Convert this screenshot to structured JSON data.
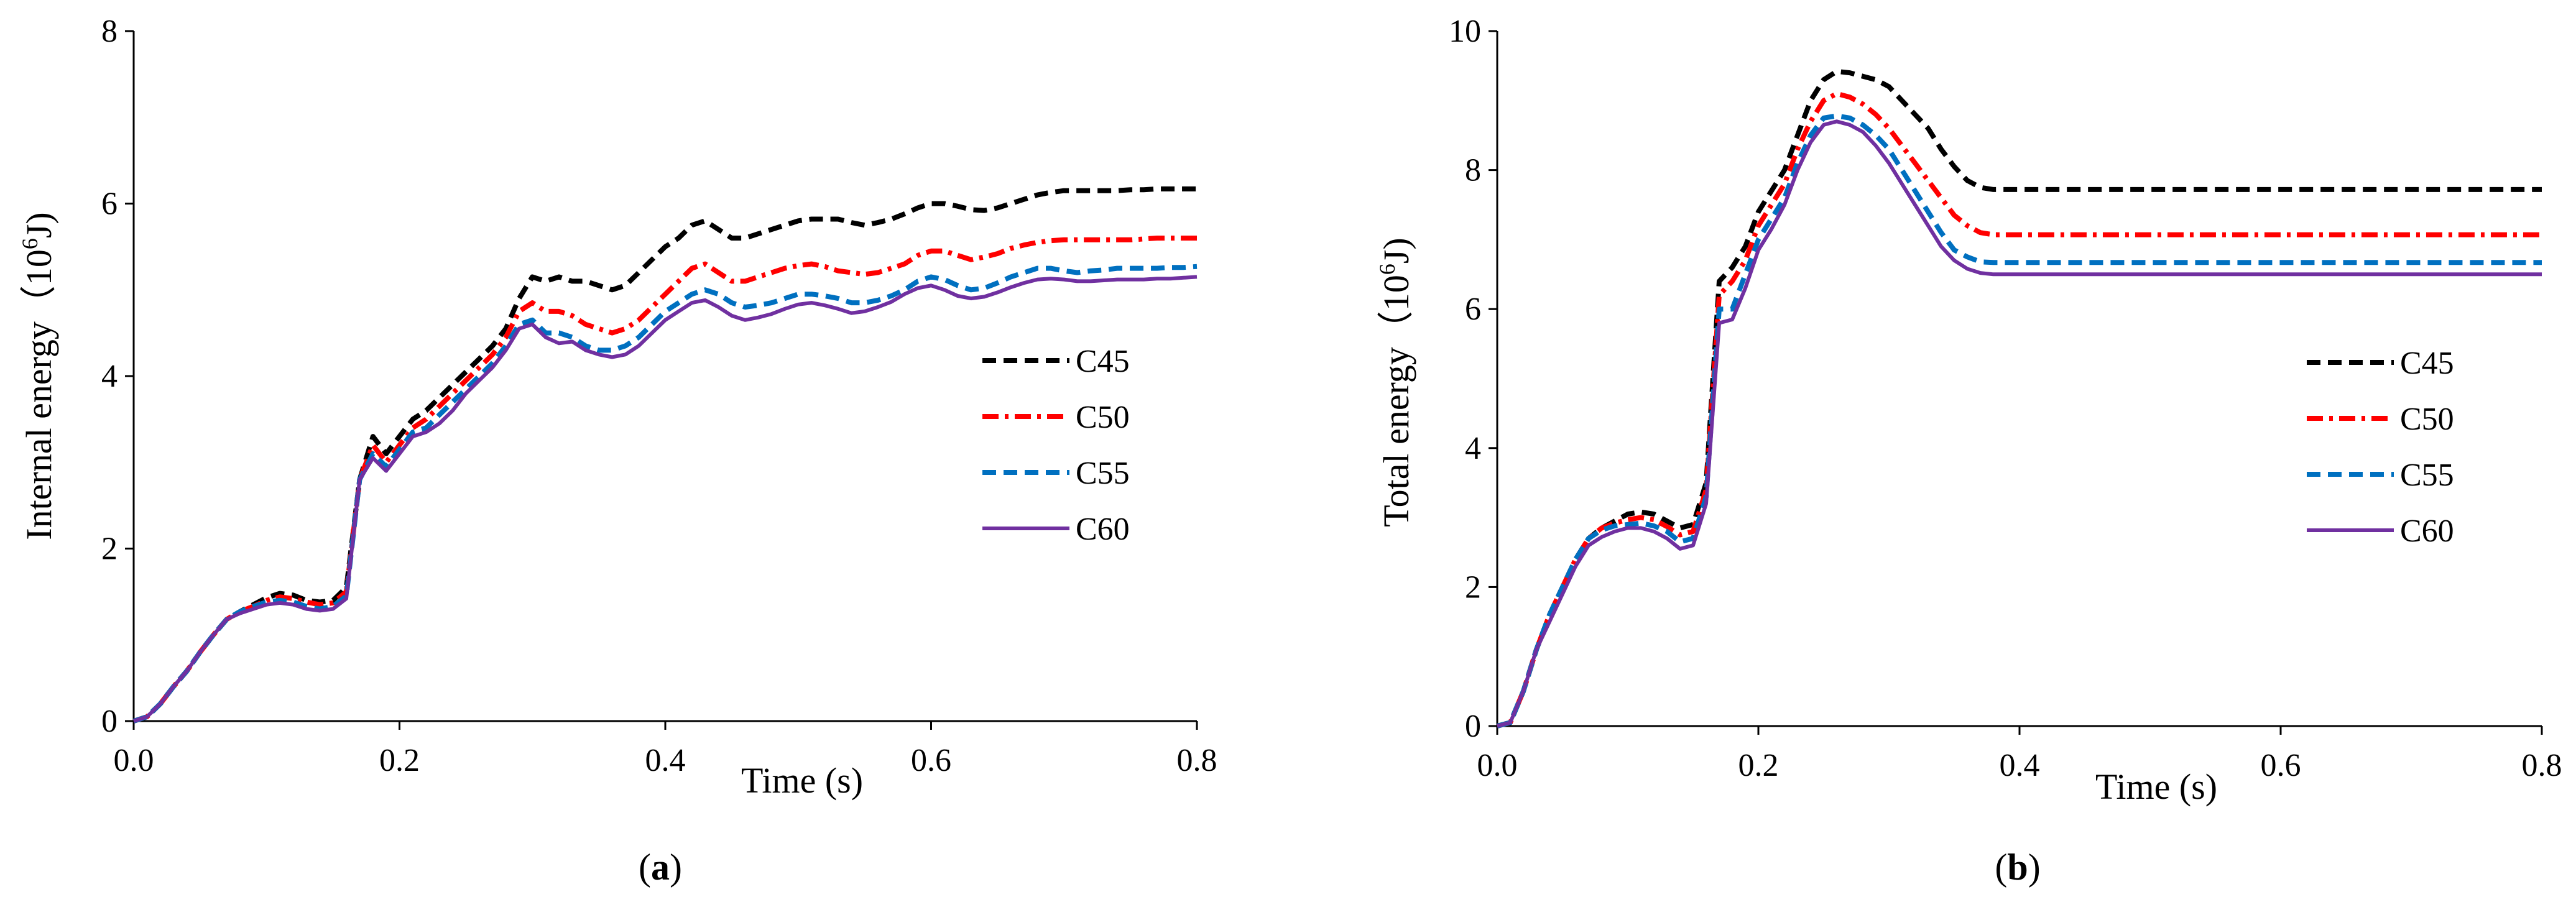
{
  "chart_data": [
    {
      "type": "line",
      "panel_label": {
        "open": "(",
        "letter": "a",
        "close": ")"
      },
      "xlabel": "Time (s)",
      "ylabel": {
        "main": "Internal energy（10",
        "sup": "6",
        "end": "J)"
      },
      "xlim": [
        0,
        0.8
      ],
      "ylim": [
        0,
        8
      ],
      "xticks": [
        "0.0",
        "0.2",
        "0.4",
        "0.6",
        "0.8"
      ],
      "yticks": [
        "0",
        "2",
        "4",
        "6",
        "8"
      ],
      "legend_position": "right",
      "x": [
        0,
        0.01,
        0.02,
        0.03,
        0.04,
        0.05,
        0.06,
        0.07,
        0.08,
        0.09,
        0.1,
        0.11,
        0.12,
        0.13,
        0.14,
        0.15,
        0.16,
        0.17,
        0.18,
        0.19,
        0.2,
        0.21,
        0.22,
        0.23,
        0.24,
        0.25,
        0.26,
        0.27,
        0.28,
        0.29,
        0.3,
        0.31,
        0.32,
        0.33,
        0.34,
        0.35,
        0.36,
        0.37,
        0.38,
        0.39,
        0.4,
        0.41,
        0.42,
        0.43,
        0.44,
        0.45,
        0.46,
        0.47,
        0.48,
        0.49,
        0.5,
        0.51,
        0.52,
        0.53,
        0.54,
        0.55,
        0.56,
        0.57,
        0.58,
        0.59,
        0.6,
        0.61,
        0.62,
        0.63,
        0.64,
        0.65,
        0.66,
        0.67,
        0.68,
        0.69,
        0.7,
        0.71,
        0.72,
        0.73,
        0.74,
        0.75,
        0.76,
        0.77,
        0.78,
        0.79,
        0.8
      ],
      "series": [
        {
          "name": "C45",
          "color": "#000000",
          "dash": "dash",
          "values": [
            0,
            0.05,
            0.2,
            0.4,
            0.58,
            0.8,
            1.0,
            1.18,
            1.27,
            1.35,
            1.43,
            1.48,
            1.46,
            1.4,
            1.38,
            1.4,
            1.55,
            2.8,
            3.3,
            3.1,
            3.3,
            3.5,
            3.6,
            3.75,
            3.9,
            4.05,
            4.2,
            4.35,
            4.55,
            4.9,
            5.15,
            5.1,
            5.15,
            5.1,
            5.1,
            5.05,
            5.0,
            5.05,
            5.2,
            5.35,
            5.5,
            5.6,
            5.75,
            5.8,
            5.7,
            5.6,
            5.6,
            5.65,
            5.7,
            5.75,
            5.8,
            5.82,
            5.82,
            5.82,
            5.78,
            5.75,
            5.78,
            5.82,
            5.88,
            5.95,
            6.0,
            6.0,
            5.97,
            5.93,
            5.92,
            5.95,
            6.0,
            6.05,
            6.1,
            6.13,
            6.15,
            6.15,
            6.15,
            6.15,
            6.15,
            6.16,
            6.16,
            6.17,
            6.17,
            6.17,
            6.17
          ]
        },
        {
          "name": "C50",
          "color": "#ff0000",
          "dash": "dashdot",
          "values": [
            0,
            0.05,
            0.2,
            0.4,
            0.58,
            0.8,
            1.0,
            1.18,
            1.27,
            1.33,
            1.4,
            1.44,
            1.42,
            1.38,
            1.35,
            1.37,
            1.5,
            2.8,
            3.2,
            3.0,
            3.2,
            3.4,
            3.5,
            3.65,
            3.8,
            3.95,
            4.1,
            4.25,
            4.45,
            4.75,
            4.85,
            4.75,
            4.75,
            4.7,
            4.6,
            4.55,
            4.5,
            4.55,
            4.65,
            4.8,
            4.95,
            5.1,
            5.25,
            5.3,
            5.2,
            5.1,
            5.1,
            5.15,
            5.2,
            5.25,
            5.28,
            5.3,
            5.27,
            5.22,
            5.2,
            5.18,
            5.2,
            5.25,
            5.3,
            5.4,
            5.45,
            5.45,
            5.4,
            5.35,
            5.38,
            5.42,
            5.48,
            5.52,
            5.55,
            5.57,
            5.58,
            5.58,
            5.58,
            5.58,
            5.58,
            5.58,
            5.59,
            5.6,
            5.6,
            5.6,
            5.6
          ]
        },
        {
          "name": "C55",
          "color": "#0070c0",
          "dash": "dash",
          "values": [
            0,
            0.05,
            0.2,
            0.4,
            0.58,
            0.8,
            1.0,
            1.18,
            1.27,
            1.33,
            1.38,
            1.4,
            1.38,
            1.33,
            1.3,
            1.33,
            1.45,
            2.8,
            3.1,
            2.95,
            3.15,
            3.35,
            3.4,
            3.55,
            3.7,
            3.85,
            4.0,
            4.15,
            4.35,
            4.6,
            4.65,
            4.5,
            4.5,
            4.45,
            4.35,
            4.3,
            4.3,
            4.35,
            4.45,
            4.6,
            4.75,
            4.85,
            4.95,
            5.0,
            4.95,
            4.85,
            4.8,
            4.82,
            4.85,
            4.9,
            4.95,
            4.95,
            4.93,
            4.9,
            4.85,
            4.85,
            4.88,
            4.93,
            5.0,
            5.1,
            5.15,
            5.12,
            5.05,
            5.0,
            5.02,
            5.08,
            5.15,
            5.2,
            5.25,
            5.25,
            5.22,
            5.2,
            5.22,
            5.23,
            5.25,
            5.25,
            5.25,
            5.25,
            5.26,
            5.26,
            5.27
          ]
        },
        {
          "name": "C60",
          "color": "#7030a0",
          "dash": "solid",
          "values": [
            0,
            0.05,
            0.2,
            0.4,
            0.58,
            0.8,
            1.0,
            1.18,
            1.25,
            1.3,
            1.35,
            1.37,
            1.35,
            1.3,
            1.28,
            1.3,
            1.42,
            2.8,
            3.05,
            2.9,
            3.1,
            3.3,
            3.35,
            3.45,
            3.6,
            3.8,
            3.95,
            4.1,
            4.3,
            4.55,
            4.6,
            4.45,
            4.38,
            4.4,
            4.3,
            4.25,
            4.22,
            4.25,
            4.35,
            4.5,
            4.65,
            4.75,
            4.85,
            4.88,
            4.8,
            4.7,
            4.65,
            4.68,
            4.72,
            4.78,
            4.83,
            4.85,
            4.82,
            4.78,
            4.73,
            4.75,
            4.8,
            4.86,
            4.95,
            5.02,
            5.05,
            5.0,
            4.93,
            4.9,
            4.92,
            4.97,
            5.03,
            5.08,
            5.12,
            5.13,
            5.12,
            5.1,
            5.1,
            5.11,
            5.12,
            5.12,
            5.12,
            5.13,
            5.13,
            5.14,
            5.15
          ]
        }
      ]
    },
    {
      "type": "line",
      "panel_label": {
        "open": "(",
        "letter": "b",
        "close": ")"
      },
      "xlabel": "Time (s)",
      "ylabel": {
        "main": "Total energy（10",
        "sup": "6",
        "end": "J)"
      },
      "xlim": [
        0,
        0.8
      ],
      "ylim": [
        0,
        10
      ],
      "xticks": [
        "0.0",
        "0.2",
        "0.4",
        "0.6",
        "0.8"
      ],
      "yticks": [
        "0",
        "2",
        "4",
        "6",
        "8",
        "10"
      ],
      "legend_position": "right",
      "x": [
        0,
        0.01,
        0.02,
        0.03,
        0.04,
        0.05,
        0.06,
        0.07,
        0.08,
        0.09,
        0.1,
        0.11,
        0.12,
        0.13,
        0.14,
        0.15,
        0.16,
        0.17,
        0.18,
        0.19,
        0.2,
        0.21,
        0.22,
        0.23,
        0.24,
        0.25,
        0.26,
        0.27,
        0.28,
        0.29,
        0.3,
        0.31,
        0.32,
        0.33,
        0.34,
        0.35,
        0.36,
        0.37,
        0.38,
        0.39,
        0.4,
        0.8
      ],
      "series": [
        {
          "name": "C45",
          "color": "#000000",
          "dash": "dash",
          "values": [
            0,
            0.05,
            0.5,
            1.1,
            1.6,
            2.0,
            2.4,
            2.7,
            2.85,
            2.95,
            3.05,
            3.08,
            3.05,
            2.95,
            2.85,
            2.9,
            3.5,
            6.4,
            6.6,
            6.9,
            7.4,
            7.7,
            8.0,
            8.5,
            9.0,
            9.3,
            9.42,
            9.4,
            9.35,
            9.3,
            9.2,
            9.0,
            8.8,
            8.6,
            8.3,
            8.05,
            7.85,
            7.75,
            7.72,
            7.72,
            7.72,
            7.72
          ]
        },
        {
          "name": "C50",
          "color": "#ff0000",
          "dash": "dashdot",
          "values": [
            0,
            0.05,
            0.5,
            1.1,
            1.6,
            2.0,
            2.4,
            2.7,
            2.85,
            2.92,
            2.97,
            3.0,
            2.97,
            2.87,
            2.75,
            2.8,
            3.4,
            6.2,
            6.4,
            6.7,
            7.2,
            7.5,
            7.8,
            8.3,
            8.7,
            9.0,
            9.1,
            9.05,
            8.95,
            8.8,
            8.6,
            8.35,
            8.1,
            7.85,
            7.6,
            7.35,
            7.2,
            7.1,
            7.07,
            7.07,
            7.07,
            7.07
          ]
        },
        {
          "name": "C55",
          "color": "#0070c0",
          "dash": "dash",
          "values": [
            0,
            0.05,
            0.5,
            1.1,
            1.6,
            2.0,
            2.4,
            2.7,
            2.82,
            2.88,
            2.9,
            2.92,
            2.88,
            2.8,
            2.65,
            2.7,
            3.3,
            6.0,
            6.0,
            6.5,
            7.0,
            7.3,
            7.6,
            8.1,
            8.5,
            8.75,
            8.78,
            8.75,
            8.65,
            8.5,
            8.3,
            8.0,
            7.7,
            7.4,
            7.1,
            6.85,
            6.75,
            6.68,
            6.67,
            6.67,
            6.67,
            6.67
          ]
        },
        {
          "name": "C60",
          "color": "#7030a0",
          "dash": "solid",
          "values": [
            0,
            0.05,
            0.5,
            1.1,
            1.5,
            1.9,
            2.3,
            2.6,
            2.72,
            2.8,
            2.85,
            2.85,
            2.8,
            2.7,
            2.55,
            2.6,
            3.2,
            5.8,
            5.85,
            6.3,
            6.85,
            7.15,
            7.5,
            8.0,
            8.4,
            8.65,
            8.7,
            8.65,
            8.55,
            8.35,
            8.1,
            7.8,
            7.5,
            7.2,
            6.9,
            6.7,
            6.58,
            6.52,
            6.5,
            6.5,
            6.5,
            6.5
          ]
        }
      ]
    }
  ]
}
